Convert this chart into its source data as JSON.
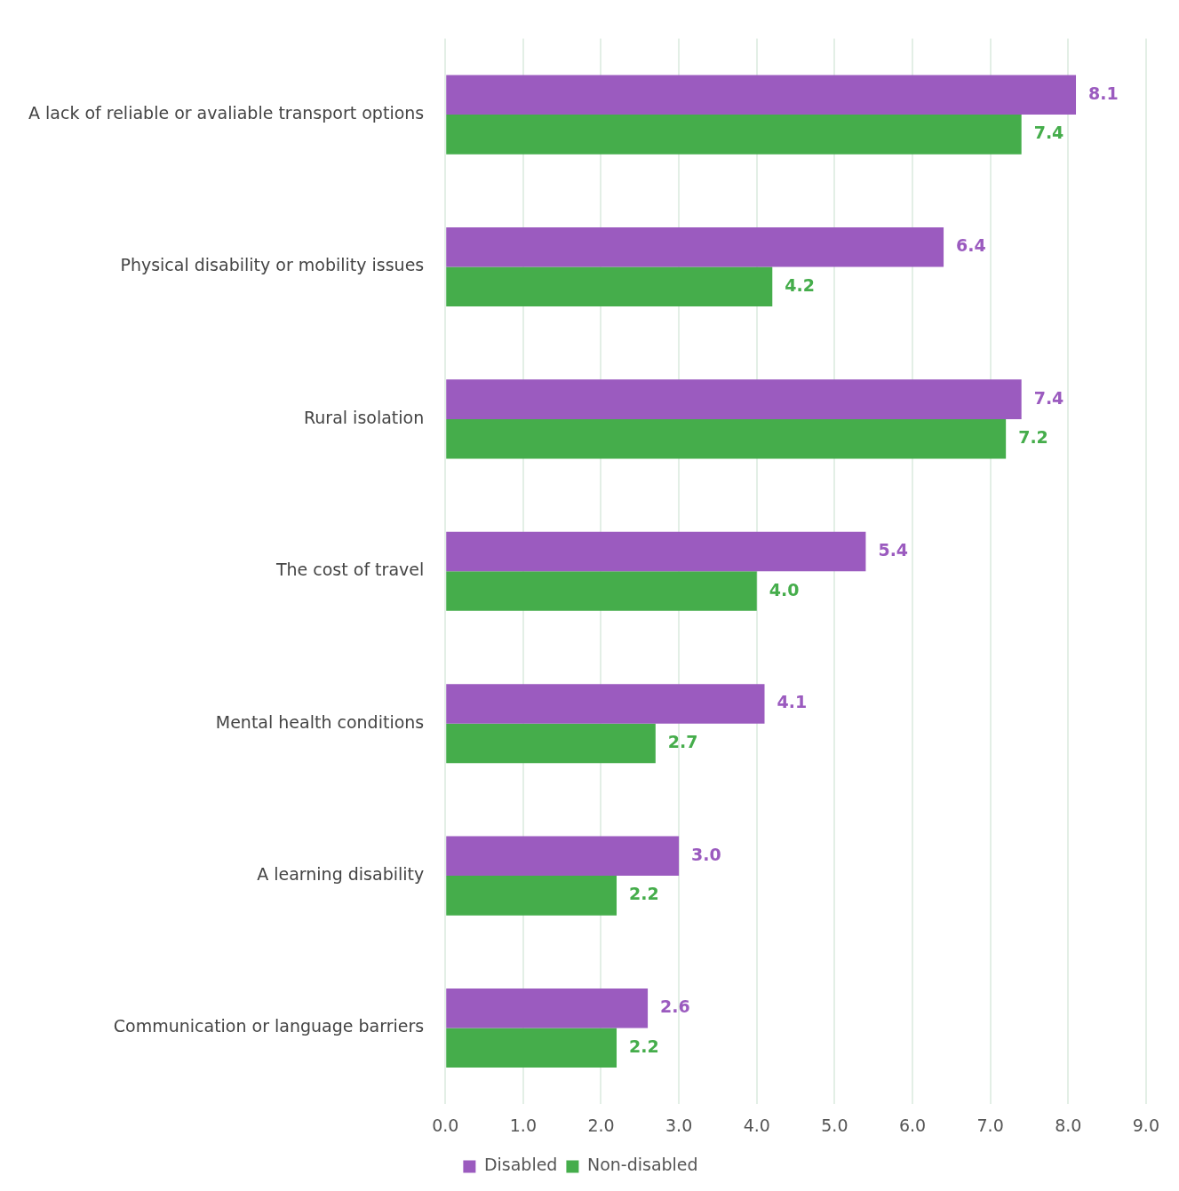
{
  "chart_data": {
    "type": "bar",
    "orientation": "horizontal",
    "categories": [
      "A lack of reliable or avaliable transport options",
      "Physical disability or mobility issues",
      "Rural isolation",
      "The cost of travel",
      "Mental health conditions",
      "A learning disability",
      "Communication or language barriers"
    ],
    "series": [
      {
        "name": "Disabled",
        "color": "#9b5bbf",
        "values": [
          8.1,
          6.4,
          7.4,
          5.4,
          4.1,
          3.0,
          2.6
        ],
        "value_labels": [
          "8.1",
          "6.4",
          "7.4",
          "5.4",
          "4.1",
          "3.0",
          "2.6"
        ]
      },
      {
        "name": "Non-disabled",
        "color": "#45ad4b",
        "values": [
          7.4,
          4.2,
          7.2,
          4.0,
          2.7,
          2.2,
          2.2
        ],
        "value_labels": [
          "7.4",
          "4.2",
          "7.2",
          "4.0",
          "2.7",
          "2.2",
          "2.2"
        ]
      }
    ],
    "xlim": [
      0,
      9
    ],
    "xticks": [
      {
        "value": 0,
        "label": "0.0"
      },
      {
        "value": 1,
        "label": "1.0"
      },
      {
        "value": 2,
        "label": "2.0"
      },
      {
        "value": 3,
        "label": "3.0"
      },
      {
        "value": 4,
        "label": "4.0"
      },
      {
        "value": 5,
        "label": "5.0"
      },
      {
        "value": 6,
        "label": "6.0"
      },
      {
        "value": 7,
        "label": "7.0"
      },
      {
        "value": 8,
        "label": "8.0"
      },
      {
        "value": 9,
        "label": "9.0"
      }
    ],
    "grid": "x",
    "legend": "bottom"
  }
}
